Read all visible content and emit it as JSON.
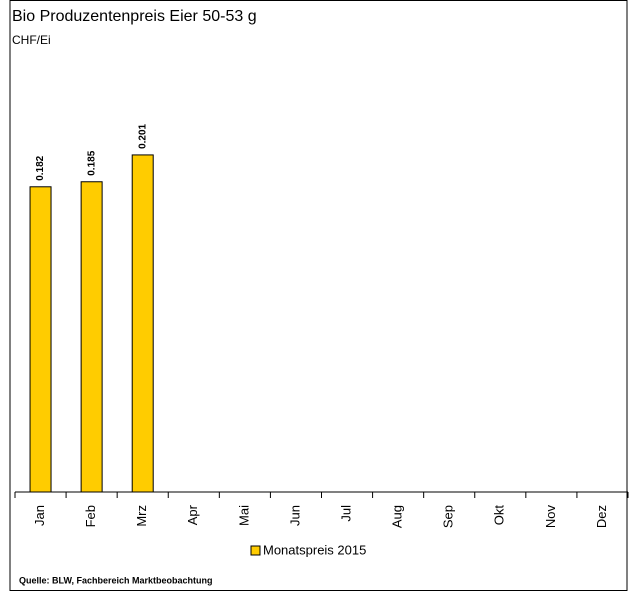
{
  "chart_data": {
    "type": "bar",
    "title": "Bio Produzentenpreis Eier 50-53 g",
    "subtitle": "CHF/Ei",
    "categories": [
      "Jan",
      "Feb",
      "Mrz",
      "Apr",
      "Mai",
      "Jun",
      "Jul",
      "Aug",
      "Sep",
      "Okt",
      "Nov",
      "Dez"
    ],
    "series": [
      {
        "name": "Monatspreis 2015",
        "color": "#ffcc00",
        "values": [
          0.182,
          0.185,
          0.201,
          null,
          null,
          null,
          null,
          null,
          null,
          null,
          null,
          null
        ]
      }
    ],
    "source": "Quelle: BLW, Fachbereich Marktbeobachtung"
  }
}
